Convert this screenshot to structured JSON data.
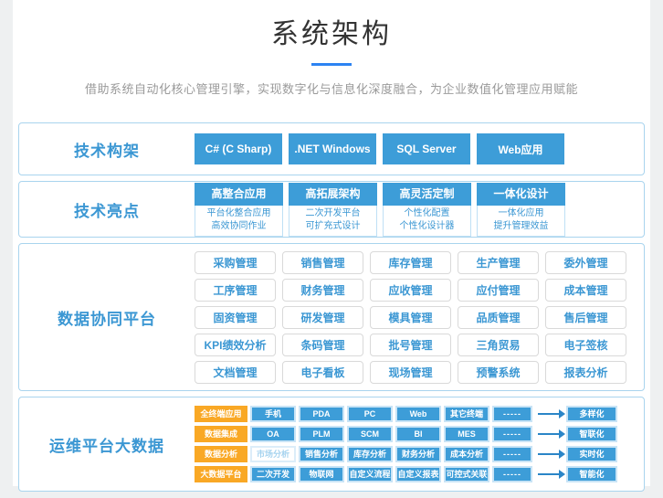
{
  "header": {
    "title": "系统架构",
    "subtitle": "借助系统自动化核心管理引擎，实现数字化与信息化深度融合，为企业数值化管理应用赋能"
  },
  "colors": {
    "accent_blue": "#2c83f2",
    "button_blue": "#3d9dd8",
    "label_blue": "#3b97d3",
    "card_border": "#a9d4ee",
    "orange": "#f9a825"
  },
  "tech_stack": {
    "label": "技术构架",
    "buttons": [
      "C# (C Sharp)",
      ".NET Windows",
      "SQL Server",
      "Web应用"
    ]
  },
  "highlights": {
    "label": "技术亮点",
    "cards": [
      {
        "title": "高整合应用",
        "lines": [
          "平台化整合应用",
          "高效协同作业"
        ]
      },
      {
        "title": "高拓展架构",
        "lines": [
          "二次开发平台",
          "可扩充式设计"
        ]
      },
      {
        "title": "高灵活定制",
        "lines": [
          "个性化配置",
          "个性化设计器"
        ]
      },
      {
        "title": "一体化设计",
        "lines": [
          "一体化应用",
          "提升管理效益"
        ]
      }
    ]
  },
  "data_platform": {
    "label": "数据协同平台",
    "rows": [
      [
        "采购管理",
        "销售管理",
        "库存管理",
        "生产管理",
        "委外管理"
      ],
      [
        "工序管理",
        "财务管理",
        "应收管理",
        "应付管理",
        "成本管理"
      ],
      [
        "固资管理",
        "研发管理",
        "模具管理",
        "品质管理",
        "售后管理"
      ],
      [
        "KPI绩效分析",
        "条码管理",
        "批号管理",
        "三角贸易",
        "电子签核"
      ],
      [
        "文档管理",
        "电子看板",
        "现场管理",
        "预警系统",
        "报表分析"
      ]
    ]
  },
  "ops_platform": {
    "label": "运维平台大数据",
    "rows": [
      {
        "category": "全终端应用",
        "items": [
          "手机",
          "PDA",
          "PC",
          "Web",
          "其它终端"
        ],
        "light_index": -1,
        "dash": "-----",
        "result": "多样化"
      },
      {
        "category": "数据集成",
        "items": [
          "OA",
          "PLM",
          "SCM",
          "BI",
          "MES"
        ],
        "light_index": -1,
        "dash": "-----",
        "result": "智联化"
      },
      {
        "category": "数据分析",
        "items": [
          "市场分析",
          "销售分析",
          "库存分析",
          "财务分析",
          "成本分析"
        ],
        "light_index": 0,
        "dash": "-----",
        "result": "实时化"
      },
      {
        "category": "大数据平台",
        "items": [
          "二次开发",
          "物联网",
          "自定义流程",
          "自定义报表",
          "可控式关联"
        ],
        "light_index": -1,
        "dash": "-----",
        "result": "智能化"
      }
    ]
  },
  "icons": {
    "arrow_right": "arrow-right-icon"
  }
}
